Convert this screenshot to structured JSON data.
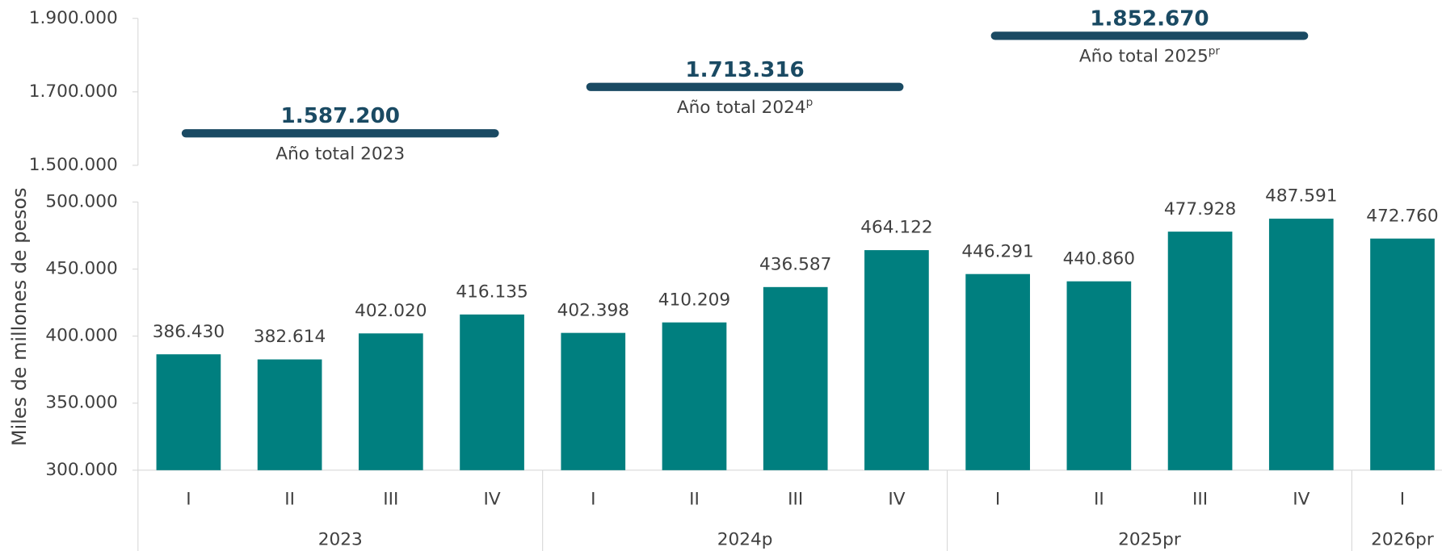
{
  "chart_data": {
    "type": "bar",
    "ylabel": "Miles de millones de pesos",
    "bar_color": "#007f7f",
    "total_color": "#1a4a63",
    "ylim": [
      300000,
      500000
    ],
    "yticks": [
      {
        "value": 300000,
        "label": "300.000"
      },
      {
        "value": 350000,
        "label": "350.000"
      },
      {
        "value": 400000,
        "label": "400.000"
      },
      {
        "value": 450000,
        "label": "450.000"
      },
      {
        "value": 500000,
        "label": "500.000"
      }
    ],
    "total_ylim": [
      1500000,
      1900000
    ],
    "total_yticks": [
      {
        "value": 1500000,
        "label": "1.500.000"
      },
      {
        "value": 1700000,
        "label": "1.700.000"
      },
      {
        "value": 1900000,
        "label": "1.900.000"
      }
    ],
    "groups": [
      {
        "name": "2023",
        "categories": [
          "I",
          "II",
          "III",
          "IV"
        ],
        "values": [
          386430,
          382614,
          402020,
          416135
        ],
        "value_labels": [
          "386.430",
          "382.614",
          "402.020",
          "416.135"
        ],
        "total": 1587200,
        "total_label": "1.587.200",
        "total_name": "Año total 2023"
      },
      {
        "name": "2024p",
        "categories": [
          "I",
          "II",
          "III",
          "IV"
        ],
        "values": [
          402398,
          410209,
          436587,
          464122
        ],
        "value_labels": [
          "402.398",
          "410.209",
          "436.587",
          "464.122"
        ],
        "total": 1713316,
        "total_label": "1.713.316",
        "total_name": "Año total 2024",
        "total_sup": "p"
      },
      {
        "name": "2025pr",
        "categories": [
          "I",
          "II",
          "III",
          "IV"
        ],
        "values": [
          446291,
          440860,
          477928,
          487591
        ],
        "value_labels": [
          "446.291",
          "440.860",
          "477.928",
          "487.591"
        ],
        "total": 1852670,
        "total_label": "1.852.670",
        "total_name": "Año total 2025",
        "total_sup": "pr"
      },
      {
        "name": "2026pr",
        "categories": [
          "I"
        ],
        "values": [
          472760
        ],
        "value_labels": [
          "472.760"
        ]
      }
    ]
  }
}
